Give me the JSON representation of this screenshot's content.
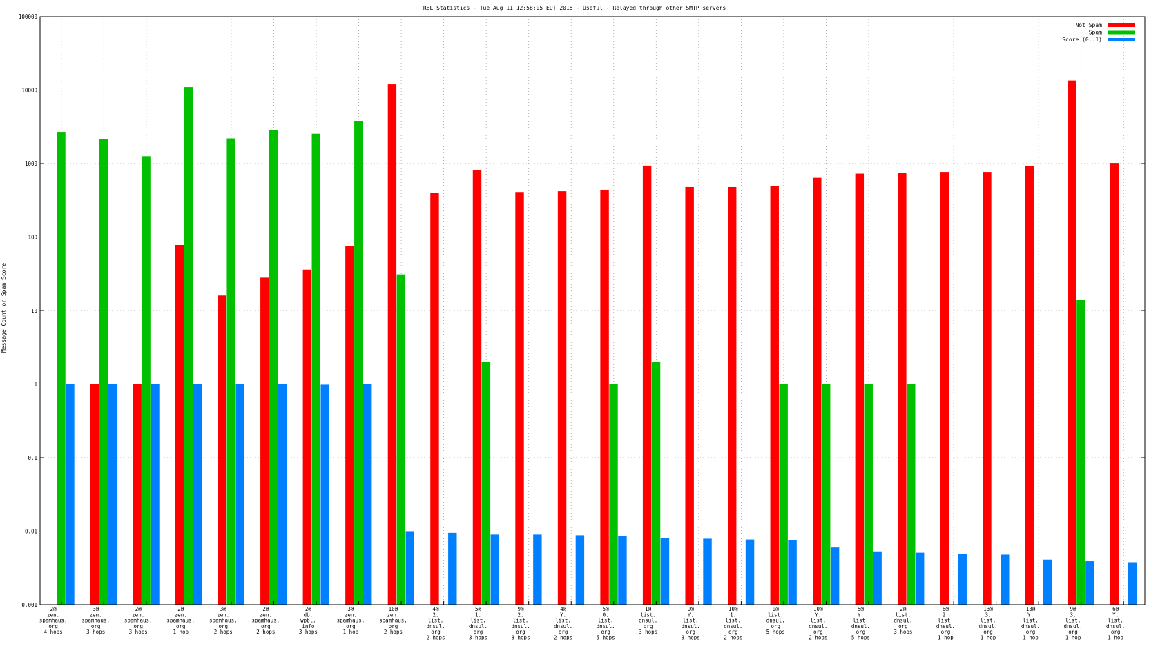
{
  "chart_data": {
    "type": "bar",
    "title": "RBL Statistics - Tue Aug 11 12:58:05 EDT 2015 - Useful - Relayed through other SMTP servers",
    "xlabel": "",
    "ylabel": "Message Count or Spam Score",
    "yscale": "log",
    "ylim": [
      0.001,
      100000
    ],
    "yticks": [
      "0.001",
      "0.01",
      "0.1",
      "1",
      "10",
      "100",
      "1000",
      "10000",
      "100000"
    ],
    "grid": true,
    "legend_position": "top-right",
    "categories": [
      [
        "2@",
        "zen.",
        "spamhaus.",
        "org",
        "4 hops"
      ],
      [
        "3@",
        "zen.",
        "spamhaus.",
        "org",
        "3 hops"
      ],
      [
        "2@",
        "zen.",
        "spamhaus.",
        "org",
        "3 hops"
      ],
      [
        "2@",
        "zen.",
        "spamhaus.",
        "org",
        "1 hop"
      ],
      [
        "3@",
        "zen.",
        "spamhaus.",
        "org",
        "2 hops"
      ],
      [
        "2@",
        "zen.",
        "spamhaus.",
        "org",
        "2 hops"
      ],
      [
        "2@",
        "db.",
        "wpbl.",
        "info",
        "3 hops"
      ],
      [
        "3@",
        "zen.",
        "spamhaus.",
        "org",
        "1 hop"
      ],
      [
        "10@",
        "zen.",
        "spamhaus.",
        "org",
        "2 hops"
      ],
      [
        "4@",
        "2.",
        "list.",
        "dnsul.",
        "org",
        "2 hops"
      ],
      [
        "5@",
        "1.",
        "list.",
        "dnsul.",
        "org",
        "3 hops"
      ],
      [
        "9@",
        "2.",
        "list.",
        "dnsul.",
        "org",
        "3 hops"
      ],
      [
        "4@",
        "Y.",
        "list.",
        "dnsul.",
        "org",
        "2 hops"
      ],
      [
        "5@",
        "0.",
        "list.",
        "dnsul.",
        "org",
        "5 hops"
      ],
      [
        "1@",
        "list.",
        "dnsul.",
        "org",
        "3 hops"
      ],
      [
        "9@",
        "Y.",
        "list.",
        "dnsul.",
        "org",
        "3 hops"
      ],
      [
        "10@",
        "1.",
        "list.",
        "dnsul.",
        "org",
        "2 hops"
      ],
      [
        "0@",
        "list.",
        "dnsul.",
        "org",
        "5 hops"
      ],
      [
        "10@",
        "Y.",
        "list.",
        "dnsul.",
        "org",
        "2 hops"
      ],
      [
        "5@",
        "Y.",
        "list.",
        "dnsul.",
        "org",
        "5 hops"
      ],
      [
        "2@",
        "list.",
        "dnsul.",
        "org",
        "3 hops"
      ],
      [
        "6@",
        "2.",
        "list.",
        "dnsul.",
        "org",
        "1 hop"
      ],
      [
        "13@",
        "3.",
        "list.",
        "dnsul.",
        "org",
        "1 hop"
      ],
      [
        "13@",
        "Y.",
        "list.",
        "dnsul.",
        "org",
        "1 hop"
      ],
      [
        "9@",
        "3.",
        "list.",
        "dnsul.",
        "org",
        "1 hop"
      ],
      [
        "6@",
        "Y.",
        "list.",
        "dnsul.",
        "org",
        "1 hop"
      ]
    ],
    "series": [
      {
        "name": "Not Spam",
        "color": "#ff0000",
        "values": [
          0,
          1,
          1,
          78,
          16,
          28,
          36,
          76,
          12000,
          400,
          820,
          410,
          420,
          440,
          940,
          480,
          480,
          490,
          640,
          730,
          740,
          770,
          770,
          920,
          13500,
          1020
        ]
      },
      {
        "name": "Spam",
        "color": "#00c000",
        "values": [
          2700,
          2150,
          1260,
          11000,
          2200,
          2850,
          2550,
          3800,
          31,
          0,
          2,
          0,
          0,
          1,
          2,
          0,
          0,
          1,
          1,
          1,
          1,
          0,
          0,
          0,
          14,
          0
        ]
      },
      {
        "name": "Score (0..1)",
        "color": "#0080ff",
        "values": [
          1,
          1,
          1,
          1,
          1,
          1,
          0.98,
          1,
          0.0098,
          0.0095,
          0.009,
          0.009,
          0.0088,
          0.0086,
          0.0081,
          0.0079,
          0.0077,
          0.0075,
          0.006,
          0.0052,
          0.0051,
          0.0049,
          0.0048,
          0.0041,
          0.0039,
          0.0037
        ]
      }
    ]
  }
}
